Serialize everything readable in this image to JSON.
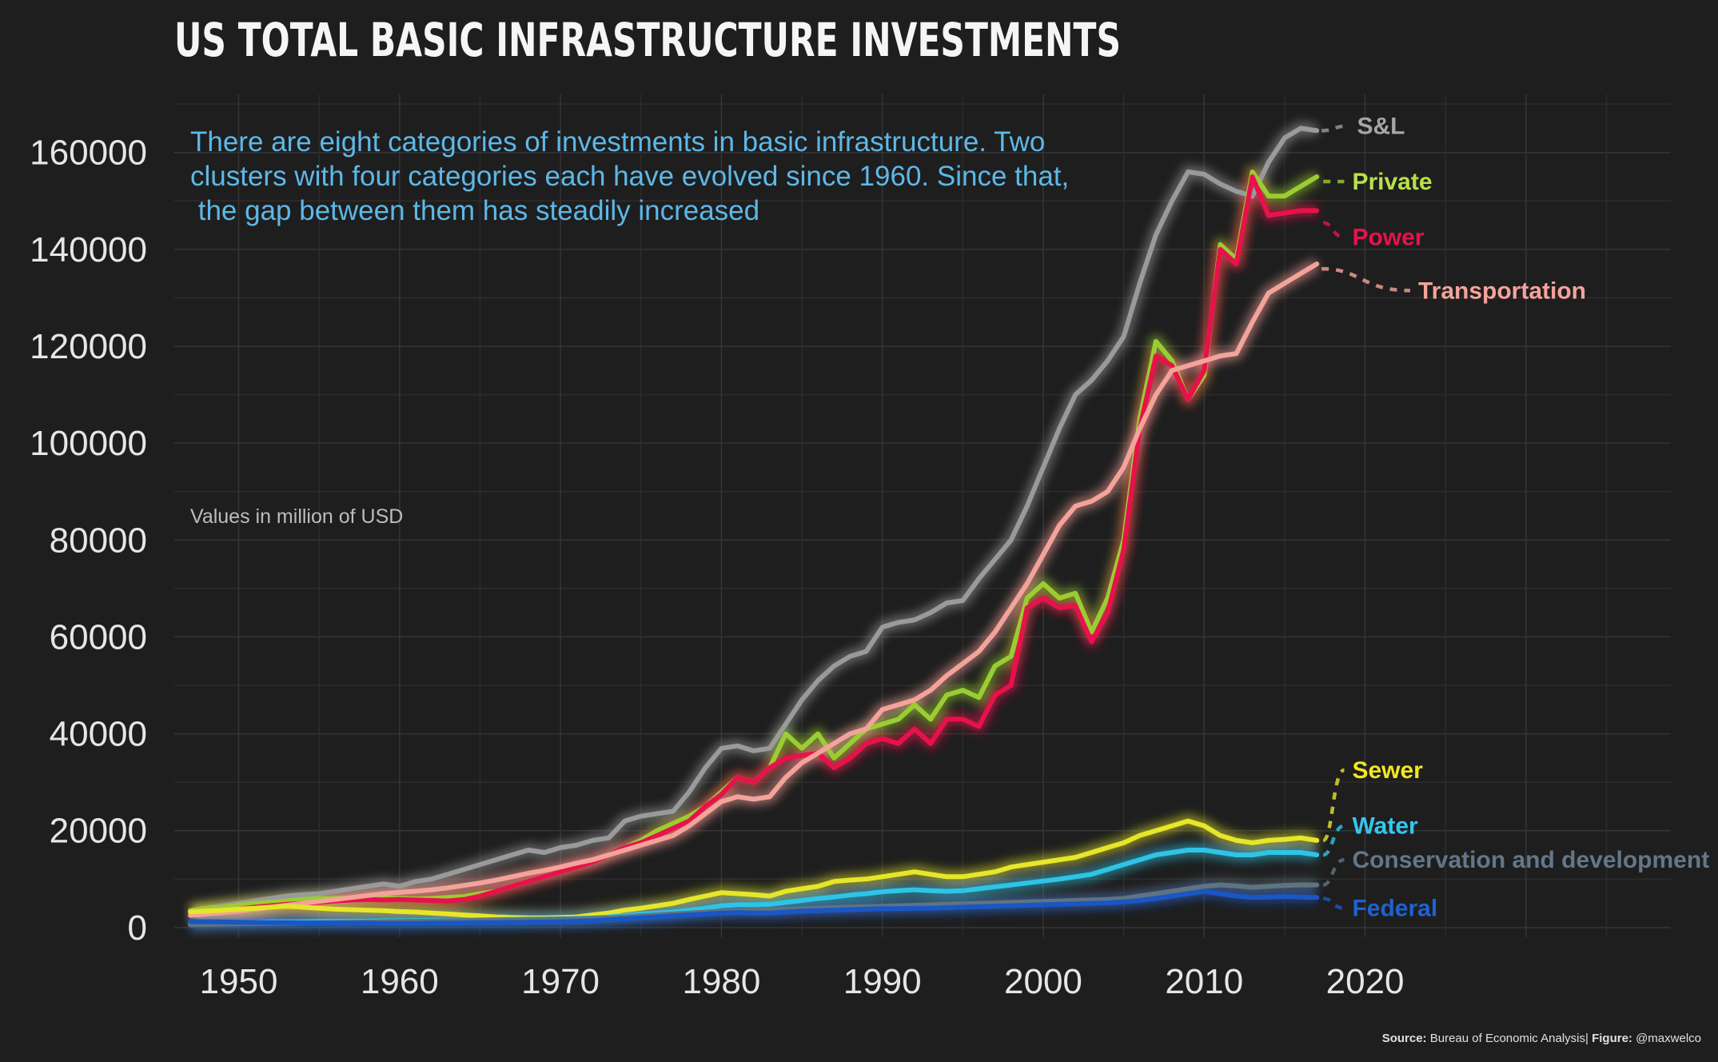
{
  "chart_data": {
    "type": "line",
    "title": "US TOTAL BASIC INFRASTRUCTURE INVESTMENTS",
    "subtitle_lines": [
      "There are eight categories of investments in basic infrastructure. Two",
      "clusters with four categories each have evolved since 1960. Since that,",
      " the gap between them has steadily increased"
    ],
    "unit_note": "Values in million of USD",
    "xlim": [
      1946,
      2039
    ],
    "ylim": [
      -2000,
      172000
    ],
    "x_ticks": [
      1950,
      1960,
      1970,
      1980,
      1990,
      2000,
      2010,
      2020
    ],
    "y_ticks": [
      0,
      20000,
      40000,
      60000,
      80000,
      100000,
      120000,
      140000,
      160000
    ],
    "grid": true,
    "legend": "direct labels at line ends (right)",
    "source_label": "Source:",
    "source_text": " Bureau of Economic Analysis",
    "sep": "|",
    "figure_label": " Figure:",
    "figure_text": " @maxwelco",
    "x": [
      1947,
      1948,
      1949,
      1950,
      1951,
      1952,
      1953,
      1954,
      1955,
      1956,
      1957,
      1958,
      1959,
      1960,
      1961,
      1962,
      1963,
      1964,
      1965,
      1966,
      1967,
      1968,
      1969,
      1970,
      1971,
      1972,
      1973,
      1974,
      1975,
      1976,
      1977,
      1978,
      1979,
      1980,
      1981,
      1982,
      1983,
      1984,
      1985,
      1986,
      1987,
      1988,
      1989,
      1990,
      1991,
      1992,
      1993,
      1994,
      1995,
      1996,
      1997,
      1998,
      1999,
      2000,
      2001,
      2002,
      2003,
      2004,
      2005,
      2006,
      2007,
      2008,
      2009,
      2010,
      2011,
      2012,
      2013,
      2014,
      2015,
      2016,
      2017
    ],
    "series": [
      {
        "name": "S&L",
        "color": "#9a9a9a",
        "label_color": "#a6a6a6",
        "values": [
          3500,
          4000,
          4500,
          5000,
          5500,
          6000,
          6500,
          6800,
          7000,
          7500,
          8000,
          8500,
          9000,
          8500,
          9500,
          10000,
          11000,
          12000,
          13000,
          14000,
          15000,
          16000,
          15500,
          16500,
          17000,
          18000,
          18500,
          22000,
          23000,
          23500,
          24000,
          28000,
          33000,
          37000,
          37500,
          36500,
          37000,
          42000,
          47000,
          51000,
          54000,
          56000,
          57000,
          62000,
          63000,
          63500,
          65000,
          67000,
          67500,
          72000,
          76000,
          80000,
          87000,
          95000,
          103000,
          110000,
          113000,
          117000,
          122000,
          133000,
          143000,
          150000,
          156000,
          155500,
          153500,
          152000,
          151000,
          158000,
          163000,
          165000,
          164500
        ],
        "end_x": 2016.9,
        "end_y": 164500,
        "label_x": 2019.5,
        "label_y": 165500
      },
      {
        "name": "Private",
        "color": "#9acd32",
        "label_color": "#b8e04a",
        "values": [
          3500,
          4000,
          4200,
          4600,
          5000,
          5200,
          5500,
          5800,
          6000,
          6000,
          6100,
          6200,
          6100,
          6000,
          5900,
          6000,
          6200,
          6400,
          7000,
          7500,
          8500,
          9500,
          10500,
          11500,
          12500,
          13500,
          15000,
          16500,
          18000,
          20000,
          21500,
          23000,
          25000,
          28000,
          31000,
          30000,
          33000,
          40000,
          37000,
          40000,
          35000,
          38000,
          41000,
          42000,
          43000,
          46000,
          43000,
          48000,
          49000,
          47500,
          54000,
          56000,
          68000,
          71000,
          68000,
          69000,
          61000,
          68000,
          80000,
          105000,
          121000,
          117000,
          109000,
          114000,
          141000,
          138000,
          156000,
          151000,
          151000,
          153000,
          155000
        ],
        "end_x": 2017,
        "end_y": 154000,
        "label_x": 2019.2,
        "label_y": 154000
      },
      {
        "name": "Power",
        "color": "#e8114b",
        "label_color": "#e8114b",
        "values": [
          3000,
          3200,
          3500,
          3800,
          4200,
          4500,
          4800,
          5000,
          5200,
          5500,
          5700,
          5800,
          5700,
          5800,
          5700,
          5600,
          5500,
          5800,
          6500,
          7500,
          8500,
          9500,
          10500,
          11500,
          12500,
          13500,
          15000,
          16500,
          17500,
          19000,
          20500,
          22000,
          25000,
          27500,
          31000,
          30000,
          33000,
          35000,
          35500,
          36000,
          33000,
          35000,
          38000,
          39000,
          38000,
          41000,
          38000,
          43000,
          43000,
          41500,
          48000,
          50000,
          66000,
          68000,
          66000,
          66500,
          59000,
          65000,
          78000,
          103000,
          118000,
          116000,
          109000,
          115000,
          140000,
          137000,
          155000,
          147000,
          147500,
          148000,
          148000
        ],
        "end_x": 2017,
        "end_y": 145500,
        "label_x": 2019.2,
        "label_y": 142500
      },
      {
        "name": "Transportation",
        "color": "#f4a39a",
        "label_color": "#f4a39a",
        "values": [
          2500,
          2800,
          3100,
          3400,
          3800,
          4200,
          4600,
          5000,
          5400,
          5800,
          6200,
          6600,
          7000,
          7300,
          7500,
          7800,
          8200,
          8700,
          9200,
          9800,
          10500,
          11200,
          11800,
          12500,
          13300,
          14000,
          15000,
          16000,
          17000,
          18000,
          19000,
          21000,
          23500,
          26000,
          27000,
          26500,
          27000,
          31000,
          34000,
          36000,
          38000,
          40000,
          41000,
          45000,
          46000,
          47000,
          49000,
          52000,
          54500,
          57000,
          61000,
          66000,
          71000,
          77000,
          83000,
          87000,
          88000,
          90000,
          95000,
          103000,
          110000,
          115000,
          116000,
          117000,
          118000,
          118500,
          125000,
          131000,
          133000,
          135000,
          137000
        ],
        "end_x": 2016.9,
        "end_y": 136000,
        "label_x": 2023.3,
        "label_y": 131500
      },
      {
        "name": "Sewer",
        "color": "#e6e62a",
        "label_color": "#f2e61e",
        "values": [
          3200,
          3400,
          3600,
          3800,
          4000,
          4200,
          4400,
          4200,
          4000,
          3800,
          3700,
          3600,
          3500,
          3300,
          3200,
          3000,
          2800,
          2600,
          2400,
          2200,
          2100,
          2000,
          2000,
          2100,
          2200,
          2600,
          3000,
          3600,
          4000,
          4500,
          5000,
          5800,
          6500,
          7200,
          7000,
          6800,
          6500,
          7500,
          8000,
          8500,
          9500,
          9800,
          10000,
          10500,
          11000,
          11500,
          11000,
          10500,
          10500,
          11000,
          11500,
          12500,
          13000,
          13500,
          14000,
          14500,
          15500,
          16500,
          17500,
          19000,
          20000,
          21000,
          22000,
          21000,
          19000,
          18000,
          17500,
          18000,
          18200,
          18500,
          18000
        ],
        "end_x": 2017,
        "end_y": 18000,
        "label_x": 2019.2,
        "label_y": 32500
      },
      {
        "name": "Water",
        "color": "#2ec4e6",
        "label_color": "#35c6ef",
        "values": [
          800,
          900,
          1000,
          1100,
          1100,
          1200,
          1200,
          1200,
          1250,
          1300,
          1300,
          1350,
          1400,
          1400,
          1450,
          1500,
          1500,
          1550,
          1600,
          1650,
          1700,
          1750,
          1800,
          1850,
          1900,
          2000,
          2200,
          2500,
          2800,
          3000,
          3200,
          3600,
          4000,
          4500,
          4700,
          4700,
          4800,
          5200,
          5600,
          6000,
          6300,
          6700,
          7000,
          7400,
          7600,
          7800,
          7600,
          7500,
          7600,
          8000,
          8400,
          8800,
          9200,
          9600,
          10000,
          10500,
          11000,
          12000,
          13000,
          14000,
          15000,
          15500,
          16000,
          16000,
          15500,
          15000,
          15000,
          15500,
          15500,
          15500,
          15000
        ],
        "end_x": 2017,
        "end_y": 15000,
        "label_x": 2019.2,
        "label_y": 21000
      },
      {
        "name": "Conservation and development",
        "color": "#5f7480",
        "label_color": "#62778a",
        "values": [
          600,
          650,
          700,
          750,
          800,
          850,
          900,
          950,
          1000,
          1050,
          1100,
          1150,
          1200,
          1250,
          1300,
          1350,
          1400,
          1450,
          1500,
          1550,
          1600,
          1650,
          1700,
          1750,
          1800,
          1900,
          2000,
          2200,
          2400,
          2600,
          2800,
          3000,
          3200,
          3400,
          3500,
          3600,
          3700,
          3800,
          3900,
          4000,
          4100,
          4200,
          4300,
          4400,
          4500,
          4600,
          4700,
          4800,
          4900,
          5000,
          5100,
          5200,
          5300,
          5400,
          5500,
          5600,
          5700,
          5800,
          6000,
          6500,
          7000,
          7500,
          8000,
          8500,
          8800,
          8600,
          8300,
          8500,
          8700,
          8800,
          8800
        ],
        "end_x": 2017,
        "end_y": 8800,
        "label_x": 2019.2,
        "label_y": 14000
      },
      {
        "name": "Federal",
        "color": "#1a56c4",
        "label_color": "#1e62d0",
        "values": [
          1200,
          1200,
          1150,
          1100,
          1050,
          1000,
          1000,
          950,
          950,
          900,
          900,
          900,
          850,
          850,
          850,
          900,
          900,
          950,
          1000,
          1000,
          1050,
          1100,
          1150,
          1200,
          1300,
          1400,
          1600,
          1800,
          2000,
          2200,
          2400,
          2600,
          2800,
          3000,
          3100,
          3000,
          3000,
          3200,
          3400,
          3500,
          3600,
          3700,
          3800,
          3900,
          3900,
          4000,
          4000,
          4100,
          4200,
          4300,
          4400,
          4500,
          4600,
          4700,
          4800,
          4900,
          5000,
          5100,
          5300,
          5600,
          6000,
          6500,
          7000,
          7500,
          7000,
          6500,
          6200,
          6300,
          6400,
          6300,
          6200
        ],
        "end_x": 2017,
        "end_y": 6000,
        "label_x": 2019.2,
        "label_y": 4000
      }
    ]
  }
}
